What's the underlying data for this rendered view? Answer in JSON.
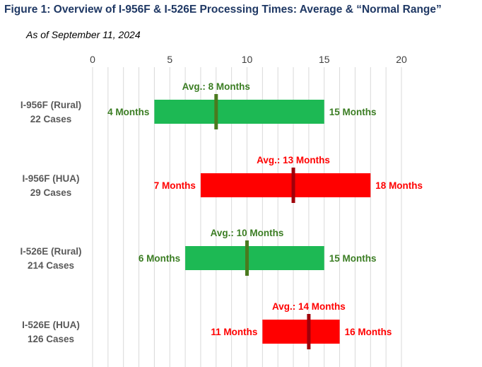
{
  "title": "Figure 1: Overview of I-956F & I-526E Processing Times: Average & “Normal Range”",
  "subtitle": "As of September 11, 2024",
  "colors": {
    "title": "#1f3864",
    "green_bar": "#1db954",
    "green_avg": "#4a7a1e",
    "green_text": "#3b7d23",
    "red_bar": "#ff0000",
    "red_avg": "#a0000a",
    "red_text": "#ff0000",
    "grid": "#d9d9d9",
    "category_text": "#595959"
  },
  "chart_data": {
    "type": "bar",
    "orientation": "horizontal-floating-range",
    "xlim": [
      0,
      20
    ],
    "x_ticks": [
      0,
      5,
      10,
      15,
      20
    ],
    "x_tick_labels": [
      "0",
      "5",
      "10",
      "15",
      "20"
    ],
    "x_axis_position": "top",
    "minor_grid_step": 1,
    "grid": true,
    "categories": [
      {
        "name": "I-956F (Rural)",
        "cases": "22 Cases",
        "min": 4,
        "max": 15,
        "avg": 8,
        "min_label": "4 Months",
        "max_label": "15 Months",
        "avg_label": "Avg.: 8 Months",
        "color": "green"
      },
      {
        "name": "I-956F (HUA)",
        "cases": "29 Cases",
        "min": 7,
        "max": 18,
        "avg": 13,
        "min_label": "7 Months",
        "max_label": "18 Months",
        "avg_label": "Avg.: 13 Months",
        "color": "red"
      },
      {
        "name": "I-526E (Rural)",
        "cases": "214 Cases",
        "min": 6,
        "max": 15,
        "avg": 10,
        "min_label": "6 Months",
        "max_label": "15 Months",
        "avg_label": "Avg.: 10 Months",
        "color": "green"
      },
      {
        "name": "I-526E (HUA)",
        "cases": "126 Cases",
        "min": 11,
        "max": 16,
        "avg": 14,
        "min_label": "11 Months",
        "max_label": "16 Months",
        "avg_label": "Avg.: 14 Months",
        "color": "red"
      }
    ]
  }
}
